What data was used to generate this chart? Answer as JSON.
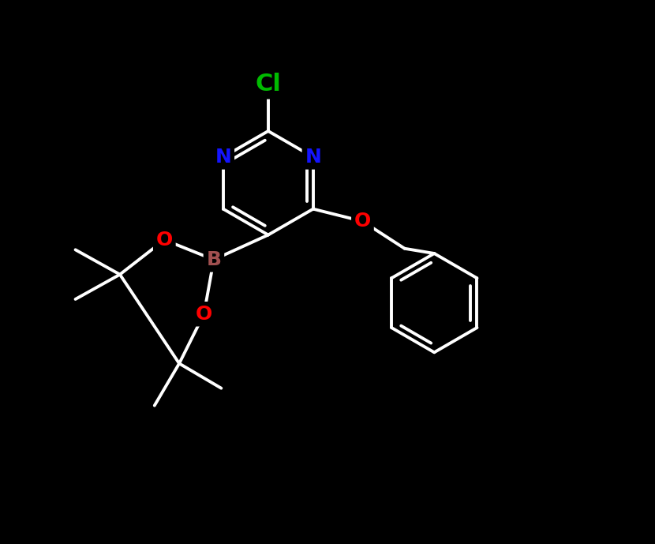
{
  "background_color": "#000000",
  "bond_color": "#ffffff",
  "N_color": "#1414ff",
  "O_color": "#ff0000",
  "B_color": "#a05050",
  "Cl_color": "#00bb00",
  "bond_width": 2.8,
  "font_size_atom": 18,
  "figsize": [
    8.3,
    6.89
  ],
  "dpi": 100,
  "xlim": [
    -4.5,
    6.5
  ],
  "ylim": [
    -5.5,
    5.5
  ]
}
